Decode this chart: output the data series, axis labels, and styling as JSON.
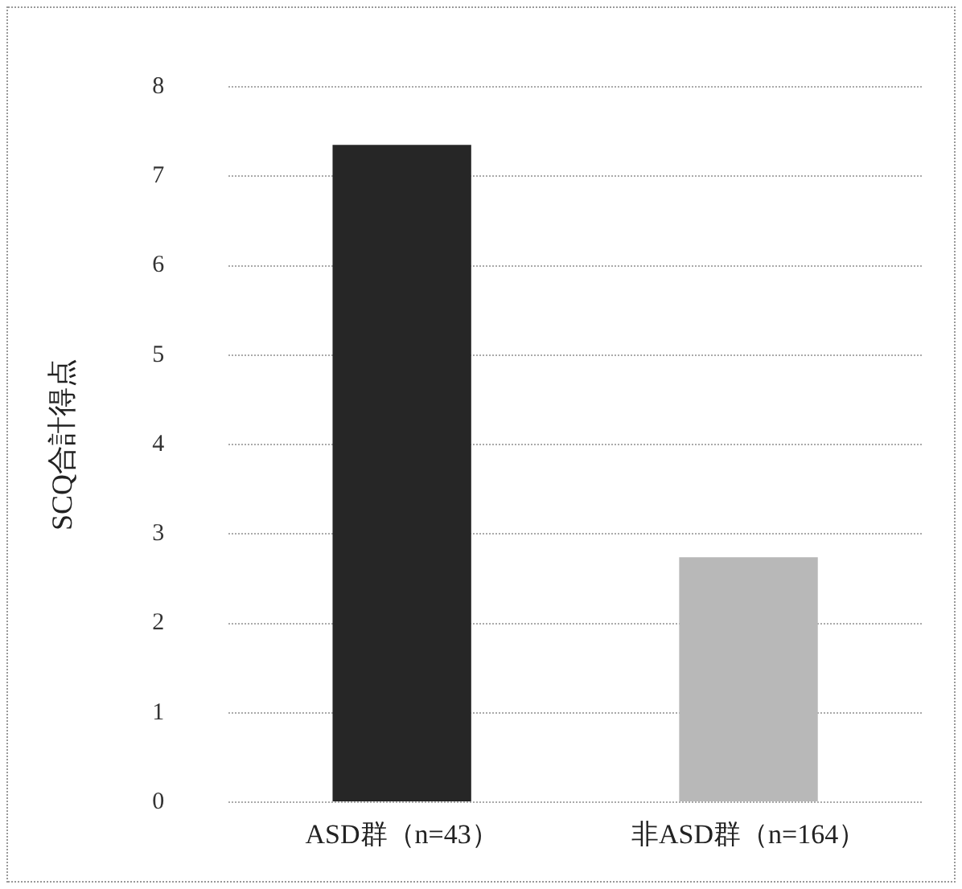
{
  "chart_data": {
    "type": "bar",
    "ylabel": "SCQ合計得点",
    "categories": [
      "ASD群（n=43）",
      "非ASD群（n=164）"
    ],
    "values": [
      7.35,
      2.74
    ],
    "colors": [
      "#262626",
      "#b8b8b8"
    ],
    "ylim": [
      0,
      8
    ],
    "yticks": [
      0,
      1,
      2,
      3,
      4,
      5,
      6,
      7,
      8
    ],
    "grid": "y"
  }
}
